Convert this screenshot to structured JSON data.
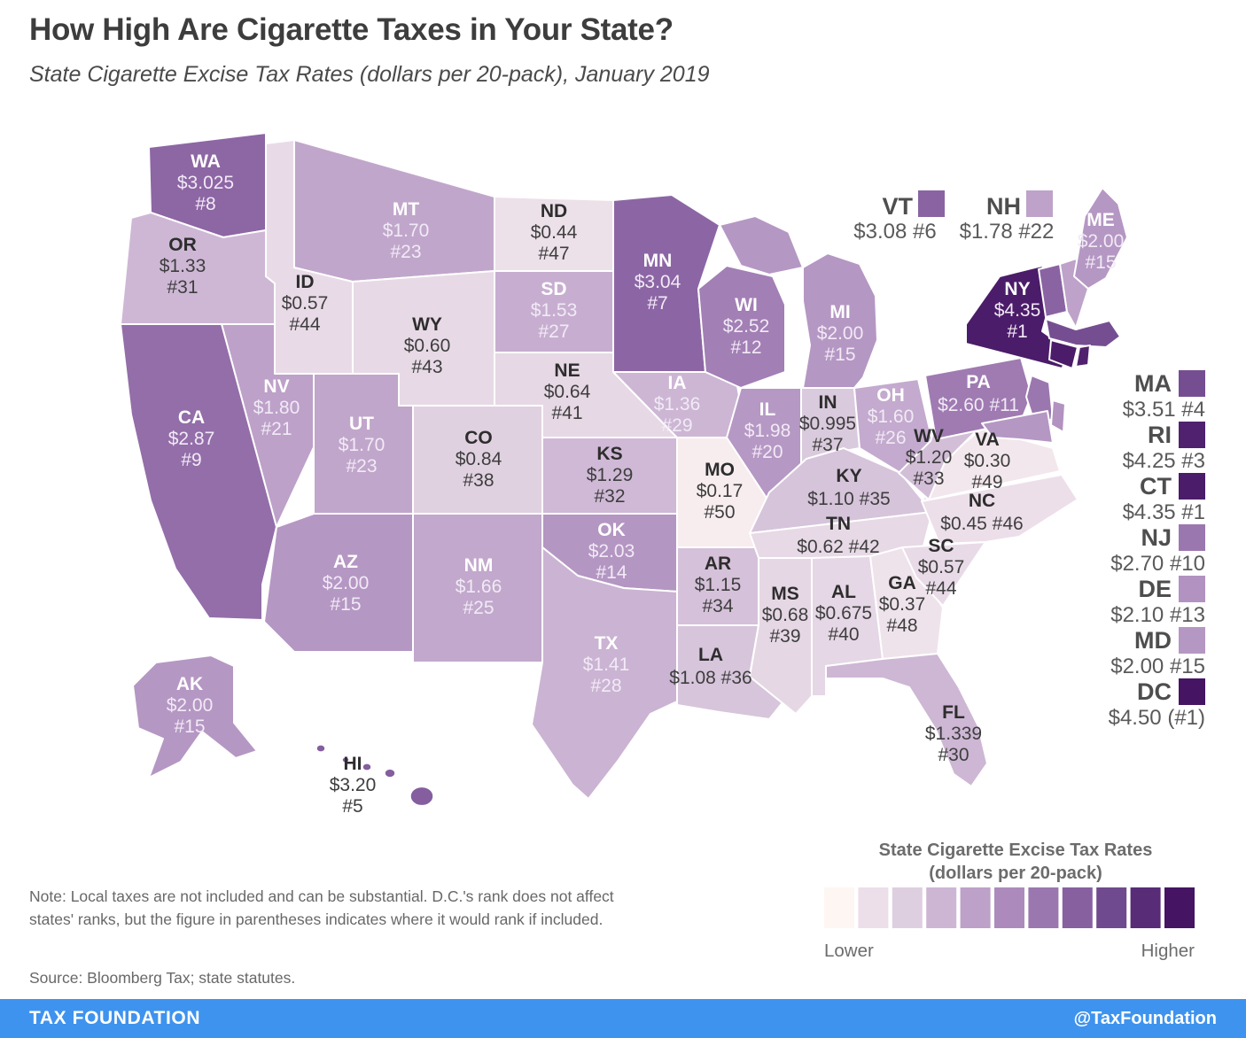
{
  "header": {
    "title": "How High Are Cigarette Taxes in Your State?",
    "subtitle": "State Cigarette Excise Tax Rates (dollars per 20-pack), January 2019"
  },
  "chart_data": {
    "type": "choropleth",
    "title": "How High Are Cigarette Taxes in Your State?",
    "subtitle": "State Cigarette Excise Tax Rates (dollars per 20-pack), January 2019",
    "unit": "dollars per 20-pack",
    "date": "January 2019",
    "domain": [
      0,
      4.5
    ],
    "legend": {
      "title_line1": "State Cigarette Excise Tax Rates",
      "title_line2": "(dollars per 20-pack)",
      "lower": "Lower",
      "higher": "Higher",
      "colors": [
        "#fdf6f3",
        "#ecdfe9",
        "#decfe0",
        "#cdb6d4",
        "#bda1c9",
        "#ac8bbc",
        "#9b77af",
        "#8760a0",
        "#704a8e",
        "#582c77",
        "#451462"
      ]
    },
    "states": [
      {
        "abbr": "WA",
        "value": "$3.025",
        "rank": "#8",
        "num": 3.025
      },
      {
        "abbr": "OR",
        "value": "$1.33",
        "rank": "#31",
        "num": 1.33
      },
      {
        "abbr": "ID",
        "value": "$0.57",
        "rank": "#44",
        "num": 0.57
      },
      {
        "abbr": "MT",
        "value": "$1.70",
        "rank": "#23",
        "num": 1.7
      },
      {
        "abbr": "WY",
        "value": "$0.60",
        "rank": "#43",
        "num": 0.6
      },
      {
        "abbr": "NV",
        "value": "$1.80",
        "rank": "#21",
        "num": 1.8
      },
      {
        "abbr": "UT",
        "value": "$1.70",
        "rank": "#23",
        "num": 1.7
      },
      {
        "abbr": "CA",
        "value": "$2.87",
        "rank": "#9",
        "num": 2.87
      },
      {
        "abbr": "CO",
        "value": "$0.84",
        "rank": "#38",
        "num": 0.84
      },
      {
        "abbr": "AZ",
        "value": "$2.00",
        "rank": "#15",
        "num": 2.0
      },
      {
        "abbr": "NM",
        "value": "$1.66",
        "rank": "#25",
        "num": 1.66
      },
      {
        "abbr": "ND",
        "value": "$0.44",
        "rank": "#47",
        "num": 0.44
      },
      {
        "abbr": "SD",
        "value": "$1.53",
        "rank": "#27",
        "num": 1.53
      },
      {
        "abbr": "NE",
        "value": "$0.64",
        "rank": "#41",
        "num": 0.64
      },
      {
        "abbr": "KS",
        "value": "$1.29",
        "rank": "#32",
        "num": 1.29
      },
      {
        "abbr": "OK",
        "value": "$2.03",
        "rank": "#14",
        "num": 2.03
      },
      {
        "abbr": "TX",
        "value": "$1.41",
        "rank": "#28",
        "num": 1.41
      },
      {
        "abbr": "MN",
        "value": "$3.04",
        "rank": "#7",
        "num": 3.04
      },
      {
        "abbr": "IA",
        "value": "$1.36",
        "rank": "#29",
        "num": 1.36
      },
      {
        "abbr": "MO",
        "value": "$0.17",
        "rank": "#50",
        "num": 0.17
      },
      {
        "abbr": "AR",
        "value": "$1.15",
        "rank": "#34",
        "num": 1.15
      },
      {
        "abbr": "LA",
        "value": "$1.08",
        "rank": "#36",
        "num": 1.08
      },
      {
        "abbr": "WI",
        "value": "$2.52",
        "rank": "#12",
        "num": 2.52
      },
      {
        "abbr": "IL",
        "value": "$1.98",
        "rank": "#20",
        "num": 1.98
      },
      {
        "abbr": "MI",
        "value": "$2.00",
        "rank": "#15",
        "num": 2.0
      },
      {
        "abbr": "IN",
        "value": "$0.995",
        "rank": "#37",
        "num": 0.995
      },
      {
        "abbr": "OH",
        "value": "$1.60",
        "rank": "#26",
        "num": 1.6
      },
      {
        "abbr": "KY",
        "value": "$1.10",
        "rank": "#35",
        "num": 1.1
      },
      {
        "abbr": "TN",
        "value": "$0.62",
        "rank": "#42",
        "num": 0.62
      },
      {
        "abbr": "MS",
        "value": "$0.68",
        "rank": "#39",
        "num": 0.68
      },
      {
        "abbr": "AL",
        "value": "$0.675",
        "rank": "#40",
        "num": 0.675
      },
      {
        "abbr": "GA",
        "value": "$0.37",
        "rank": "#48",
        "num": 0.37
      },
      {
        "abbr": "FL",
        "value": "$1.339",
        "rank": "#30",
        "num": 1.339
      },
      {
        "abbr": "SC",
        "value": "$0.57",
        "rank": "#44",
        "num": 0.57
      },
      {
        "abbr": "NC",
        "value": "$0.45",
        "rank": "#46",
        "num": 0.45
      },
      {
        "abbr": "VA",
        "value": "$0.30",
        "rank": "#49",
        "num": 0.3
      },
      {
        "abbr": "WV",
        "value": "$1.20",
        "rank": "#33",
        "num": 1.2
      },
      {
        "abbr": "PA",
        "value": "$2.60",
        "rank": "#11",
        "num": 2.6
      },
      {
        "abbr": "NY",
        "value": "$4.35",
        "rank": "#1",
        "num": 4.35
      },
      {
        "abbr": "VT",
        "value": "$3.08",
        "rank": "#6",
        "num": 3.08
      },
      {
        "abbr": "NH",
        "value": "$1.78",
        "rank": "#22",
        "num": 1.78
      },
      {
        "abbr": "ME",
        "value": "$2.00",
        "rank": "#15",
        "num": 2.0
      },
      {
        "abbr": "MA",
        "value": "$3.51",
        "rank": "#4",
        "num": 3.51
      },
      {
        "abbr": "CT",
        "value": "$4.35",
        "rank": "#1",
        "num": 4.35
      },
      {
        "abbr": "RI",
        "value": "$4.25",
        "rank": "#3",
        "num": 4.25
      },
      {
        "abbr": "NJ",
        "value": "$2.70",
        "rank": "#10",
        "num": 2.7
      },
      {
        "abbr": "DE",
        "value": "$2.10",
        "rank": "#13",
        "num": 2.1
      },
      {
        "abbr": "MD",
        "value": "$2.00",
        "rank": "#15",
        "num": 2.0
      },
      {
        "abbr": "DC",
        "value": "$4.50",
        "rank": "(#1)",
        "num": 4.5
      },
      {
        "abbr": "AK",
        "value": "$2.00",
        "rank": "#15",
        "num": 2.0
      },
      {
        "abbr": "HI",
        "value": "$3.20",
        "rank": "#5",
        "num": 3.2
      }
    ]
  },
  "note": {
    "text": "Note: Local taxes are not included and can be substantial. D.C.'s rank does not affect states' ranks, but the figure in parentheses indicates where it would rank if included.",
    "source": "Source: Bloomberg Tax; state statutes."
  },
  "footer": {
    "brand": "TAX FOUNDATION",
    "handle": "@TaxFoundation"
  },
  "colors": {
    "footer_bar": "#3e93ee",
    "title_text": "#3d3d3d",
    "note_text": "#686868"
  }
}
